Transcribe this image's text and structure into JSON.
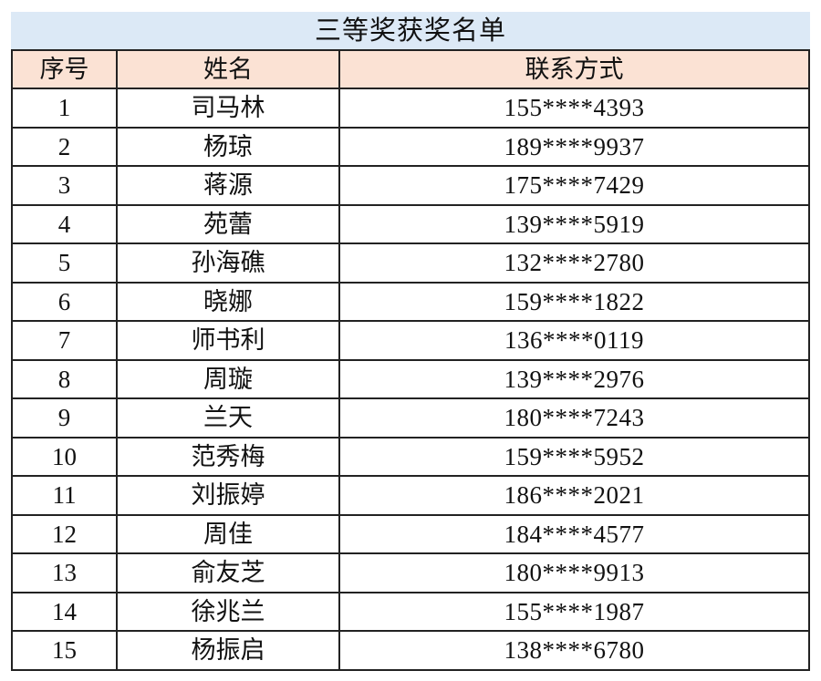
{
  "title": "三等奖获奖名单",
  "headers": {
    "index": "序号",
    "name": "姓名",
    "contact": "联系方式"
  },
  "colors": {
    "title_bg": "#dce9f6",
    "header_bg": "#fbe2d4"
  },
  "rows": [
    {
      "index": "1",
      "name": "司马林",
      "contact": "155****4393"
    },
    {
      "index": "2",
      "name": "杨琼",
      "contact": "189****9937"
    },
    {
      "index": "3",
      "name": "蒋源",
      "contact": "175****7429"
    },
    {
      "index": "4",
      "name": "苑蕾",
      "contact": "139****5919"
    },
    {
      "index": "5",
      "name": "孙海礁",
      "contact": "132****2780"
    },
    {
      "index": "6",
      "name": "晓娜",
      "contact": "159****1822"
    },
    {
      "index": "7",
      "name": "师书利",
      "contact": "136****0119"
    },
    {
      "index": "8",
      "name": "周璇",
      "contact": "139****2976"
    },
    {
      "index": "9",
      "name": "兰天",
      "contact": "180****7243"
    },
    {
      "index": "10",
      "name": "范秀梅",
      "contact": "159****5952"
    },
    {
      "index": "11",
      "name": "刘振婷",
      "contact": "186****2021"
    },
    {
      "index": "12",
      "name": "周佳",
      "contact": "184****4577"
    },
    {
      "index": "13",
      "name": "俞友芝",
      "contact": "180****9913"
    },
    {
      "index": "14",
      "name": "徐兆兰",
      "contact": "155****1987"
    },
    {
      "index": "15",
      "name": "杨振启",
      "contact": "138****6780"
    }
  ]
}
